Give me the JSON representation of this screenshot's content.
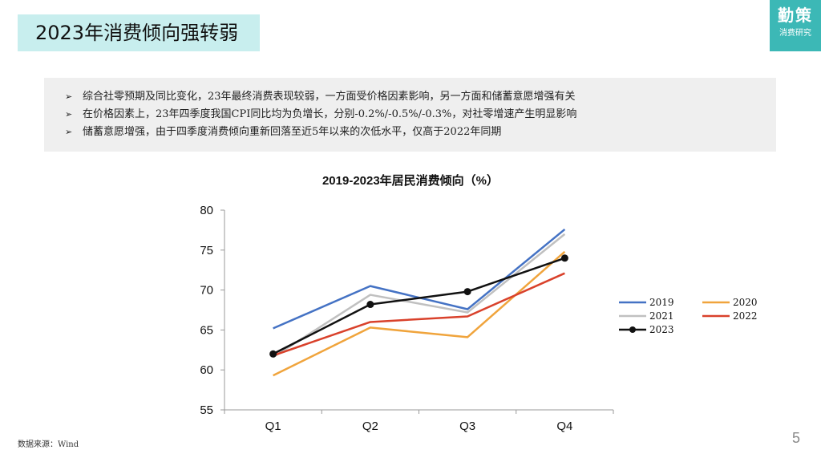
{
  "header": {
    "title": "2023年消费倾向强转弱",
    "logo_main": "勤策",
    "logo_sub": "消费研究"
  },
  "bullets": [
    "综合社零预期及同比变化，23年最终消费表现较弱，一方面受价格因素影响，另一方面和储蓄意愿增强有关",
    "在价格因素上，23年四季度我国CPI同比均为负增长，分别-0.2%/-0.5%/-0.3%，对社零增速产生明显影响",
    "储蓄意愿增强，由于四季度消费倾向重新回落至近5年以来的次低水平，仅高于2022年同期"
  ],
  "bullet_icon": "arrow-right-icon",
  "footer": {
    "source": "数据来源：Wind",
    "page_number": "5"
  },
  "chart_data": {
    "type": "line",
    "title": "2019-2023年居民消费倾向（%）",
    "categories": [
      "Q1",
      "Q2",
      "Q3",
      "Q4"
    ],
    "ylim": [
      55,
      80
    ],
    "yticks": [
      55,
      60,
      65,
      70,
      75,
      80
    ],
    "grid": false,
    "legend_position": "right",
    "series": [
      {
        "name": "2019",
        "values": [
          65.2,
          70.5,
          67.6,
          77.6
        ],
        "color": "#4472c4",
        "marker": false
      },
      {
        "name": "2020",
        "values": [
          59.3,
          65.3,
          64.1,
          74.8
        ],
        "color": "#f0a43c",
        "marker": false
      },
      {
        "name": "2021",
        "values": [
          61.6,
          69.4,
          67.2,
          77.0
        ],
        "color": "#c0c0c0",
        "marker": false
      },
      {
        "name": "2022",
        "values": [
          61.8,
          66.0,
          66.7,
          72.1
        ],
        "color": "#d9412b",
        "marker": false
      },
      {
        "name": "2023",
        "values": [
          62.0,
          68.2,
          69.8,
          74.0
        ],
        "color": "#111111",
        "marker": true
      }
    ]
  }
}
